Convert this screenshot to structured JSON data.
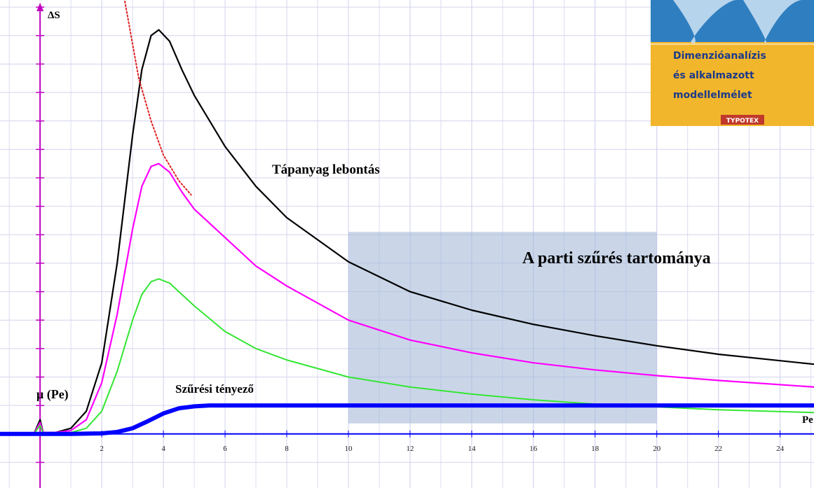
{
  "chart_data": {
    "type": "line",
    "y_label": "ΔS",
    "x_label": "Pe",
    "xlim": [
      -1.3,
      25.1
    ],
    "ylim": [
      -1.9,
      15.25
    ],
    "xticks": [
      2,
      4,
      6,
      8,
      10,
      12,
      14,
      16,
      18,
      20,
      22,
      24
    ],
    "yticks": [
      -1,
      0,
      1,
      2,
      3,
      4,
      5,
      6,
      7,
      8,
      9,
      10,
      11,
      12,
      13,
      14,
      15
    ],
    "grid": true,
    "series": [
      {
        "color": "#000000",
        "x": [
          -1.3,
          -0.2,
          0,
          0.1,
          0.5,
          1,
          1.5,
          2,
          2.5,
          3,
          3.3,
          3.6,
          3.85,
          4.2,
          4.6,
          5,
          6,
          7,
          8,
          10,
          12,
          14,
          16,
          18,
          20,
          22,
          25.1
        ],
        "values": [
          0,
          0,
          0.5,
          0.05,
          0.05,
          0.2,
          0.8,
          2.5,
          6,
          10.5,
          12.8,
          14,
          14.2,
          13.8,
          12.8,
          11.9,
          10.1,
          8.7,
          7.6,
          6.05,
          5.0,
          4.35,
          3.85,
          3.45,
          3.1,
          2.8,
          2.45
        ]
      },
      {
        "color": "#ff00ff",
        "x": [
          -1.3,
          -0.2,
          0,
          0.1,
          0.5,
          1,
          1.5,
          2,
          2.5,
          3,
          3.3,
          3.6,
          3.85,
          4.2,
          4.6,
          5,
          6,
          7,
          8,
          10,
          12,
          14,
          16,
          18,
          20,
          22,
          25.1
        ],
        "values": [
          0,
          0,
          0.4,
          0.05,
          0.05,
          0.12,
          0.5,
          1.8,
          4.2,
          7.2,
          8.7,
          9.4,
          9.5,
          9.2,
          8.5,
          7.9,
          6.9,
          5.9,
          5.2,
          4.0,
          3.3,
          2.85,
          2.5,
          2.25,
          2.05,
          1.88,
          1.65
        ]
      },
      {
        "color": "#33e633",
        "x": [
          -1.3,
          -0.2,
          0,
          0.1,
          0.5,
          1,
          1.5,
          2,
          2.5,
          3,
          3.3,
          3.6,
          3.85,
          4.2,
          4.6,
          5,
          6,
          7,
          8,
          10,
          12,
          14,
          16,
          18,
          20,
          22,
          25.1
        ],
        "values": [
          0,
          0,
          0.3,
          0.02,
          0.02,
          0.05,
          0.2,
          0.8,
          2.2,
          4.0,
          4.9,
          5.35,
          5.45,
          5.3,
          4.9,
          4.5,
          3.6,
          3.0,
          2.6,
          2.0,
          1.65,
          1.4,
          1.2,
          1.05,
          0.95,
          0.85,
          0.75
        ]
      },
      {
        "color": "#0000ff",
        "x": [
          -1.3,
          1,
          2,
          2.5,
          3,
          3.5,
          4,
          4.5,
          5,
          5.5,
          6,
          25.1
        ],
        "values": [
          0,
          0,
          0.02,
          0.07,
          0.2,
          0.45,
          0.72,
          0.9,
          0.97,
          1.0,
          1.0,
          1.0
        ]
      },
      {
        "color": "#e02020",
        "x": [
          2.75,
          3.2,
          3.6,
          4.0,
          4.5,
          4.9
        ],
        "values": [
          15.2,
          12.5,
          11.0,
          9.8,
          8.9,
          8.4
        ]
      }
    ],
    "shaded_region": {
      "xlim": [
        10,
        20
      ],
      "ylim": [
        0.37,
        7.1
      ]
    },
    "annotations": [
      "Tápanyag lebontás",
      "A parti szűrés tartománya",
      "Szűrési tényező",
      "μ (Pe)"
    ]
  },
  "inset": {
    "lines": [
      "Dimenzióanalízis",
      "és alkalmazott",
      "modellelmélet"
    ],
    "publisher": "TYPOTEX"
  }
}
